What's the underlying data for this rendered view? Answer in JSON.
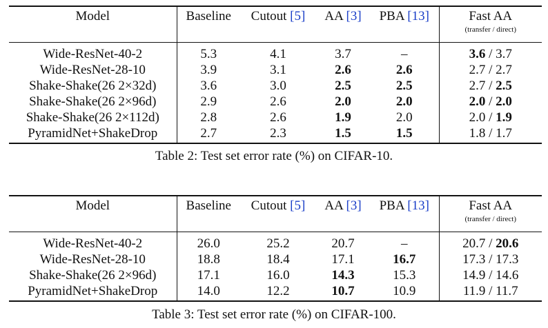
{
  "tables": [
    {
      "headers": {
        "model": "Model",
        "baseline": "Baseline",
        "cutout": "Cutout",
        "cutout_ref": "[5]",
        "aa": "AA",
        "aa_ref": "[3]",
        "pba": "PBA",
        "pba_ref": "[13]",
        "fastaa": "Fast AA",
        "fastaa_sub": "(transfer / direct)"
      },
      "rows": [
        {
          "model": "Wide-ResNet-40-2",
          "baseline": "5.3",
          "cutout": "4.1",
          "aa": "3.7",
          "pba": "–",
          "fa_t": "3.6",
          "fa_d": "3.7",
          "bold": [
            "fa_t"
          ]
        },
        {
          "model": "Wide-ResNet-28-10",
          "baseline": "3.9",
          "cutout": "3.1",
          "aa": "2.6",
          "pba": "2.6",
          "fa_t": "2.7",
          "fa_d": "2.7",
          "bold": [
            "aa",
            "pba"
          ]
        },
        {
          "model": "Shake-Shake(26 2×32d)",
          "baseline": "3.6",
          "cutout": "3.0",
          "aa": "2.5",
          "pba": "2.5",
          "fa_t": "2.7",
          "fa_d": "2.5",
          "bold": [
            "aa",
            "pba",
            "fa_d"
          ]
        },
        {
          "model": "Shake-Shake(26 2×96d)",
          "baseline": "2.9",
          "cutout": "2.6",
          "aa": "2.0",
          "pba": "2.0",
          "fa_t": "2.0",
          "fa_d": "2.0",
          "bold": [
            "aa",
            "pba",
            "fa_t",
            "fa_d"
          ]
        },
        {
          "model": "Shake-Shake(26 2×112d)",
          "baseline": "2.8",
          "cutout": "2.6",
          "aa": "1.9",
          "pba": "2.0",
          "fa_t": "2.0",
          "fa_d": "1.9",
          "bold": [
            "aa",
            "fa_d"
          ]
        },
        {
          "model": "PyramidNet+ShakeDrop",
          "baseline": "2.7",
          "cutout": "2.3",
          "aa": "1.5",
          "pba": "1.5",
          "fa_t": "1.8",
          "fa_d": "1.7",
          "bold": [
            "aa",
            "pba"
          ]
        }
      ],
      "caption": "Table 2: Test set error rate (%) on CIFAR-10."
    },
    {
      "headers": {
        "model": "Model",
        "baseline": "Baseline",
        "cutout": "Cutout",
        "cutout_ref": "[5]",
        "aa": "AA",
        "aa_ref": "[3]",
        "pba": "PBA",
        "pba_ref": "[13]",
        "fastaa": "Fast AA",
        "fastaa_sub": "(transfer / direct)"
      },
      "rows": [
        {
          "model": "Wide-ResNet-40-2",
          "baseline": "26.0",
          "cutout": "25.2",
          "aa": "20.7",
          "pba": "–",
          "fa_t": "20.7",
          "fa_d": "20.6",
          "bold": [
            "fa_d"
          ]
        },
        {
          "model": "Wide-ResNet-28-10",
          "baseline": "18.8",
          "cutout": "18.4",
          "aa": "17.1",
          "pba": "16.7",
          "fa_t": "17.3",
          "fa_d": "17.3",
          "bold": [
            "pba"
          ]
        },
        {
          "model": "Shake-Shake(26 2×96d)",
          "baseline": "17.1",
          "cutout": "16.0",
          "aa": "14.3",
          "pba": "15.3",
          "fa_t": "14.9",
          "fa_d": "14.6",
          "bold": [
            "aa"
          ]
        },
        {
          "model": "PyramidNet+ShakeDrop",
          "baseline": "14.0",
          "cutout": "12.2",
          "aa": "10.7",
          "pba": "10.9",
          "fa_t": "11.9",
          "fa_d": "11.7",
          "bold": [
            "aa"
          ]
        }
      ],
      "caption": "Table 3: Test set error rate (%) on CIFAR-100."
    }
  ],
  "colors": {
    "citation": "#1a3ec8",
    "text": "#111111"
  }
}
